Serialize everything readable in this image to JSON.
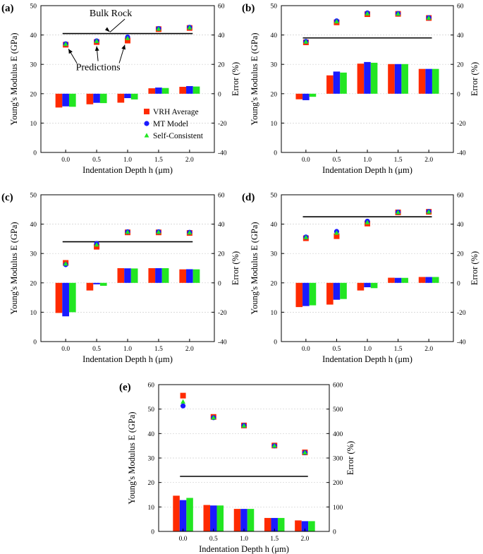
{
  "chart_data": [
    {
      "panel": "(a)",
      "type": "bar+scatter",
      "categories": [
        "0.0",
        "0.5",
        "1.0",
        "1.5",
        "2.0"
      ],
      "xlabel": "Indentation Depth h (μm)",
      "ylabel": "Young's Modulus E (GPa)",
      "ylabel_right": "Error (%)",
      "ylim": [
        0,
        50
      ],
      "yticks": [
        "0",
        "10",
        "20",
        "30",
        "40",
        "50"
      ],
      "ylim_right": [
        -40,
        60
      ],
      "yticks_right": [
        "-40",
        "-20",
        "0",
        "20",
        "40",
        "60"
      ],
      "bulk_rock": 40.5,
      "points": [
        {
          "name": "VRH Average",
          "values": [
            36.7,
            37.6,
            38.1,
            42.0,
            42.4
          ]
        },
        {
          "name": "MT Model",
          "values": [
            37.0,
            38.0,
            39.3,
            42.2,
            42.6
          ]
        },
        {
          "name": "Self-Consistent",
          "values": [
            36.9,
            37.9,
            38.9,
            42.1,
            42.5
          ]
        }
      ],
      "error_bars": [
        {
          "name": "VRH Average",
          "values": [
            -9.4,
            -7.2,
            -6.1,
            3.7,
            4.7
          ]
        },
        {
          "name": "MT Model",
          "values": [
            -8.6,
            -6.2,
            -3.0,
            4.2,
            5.2
          ]
        },
        {
          "name": "Self-Consistent",
          "values": [
            -8.9,
            -6.4,
            -3.9,
            3.9,
            4.9
          ]
        }
      ],
      "legend": [
        "VRH Average",
        "MT Model",
        "Self-Consistent"
      ],
      "annotations": [
        "Bulk Rock",
        "Predictions"
      ]
    },
    {
      "panel": "(b)",
      "type": "bar+scatter",
      "categories": [
        "0.0",
        "0.5",
        "1.0",
        "1.5",
        "2.0"
      ],
      "xlabel": "Indentation Depth h (μm)",
      "ylabel": "Young's Modulus E (GPa)",
      "ylabel_right": "Error (%)",
      "ylim": [
        0,
        50
      ],
      "yticks": [
        "0",
        "10",
        "20",
        "30",
        "40",
        "50"
      ],
      "ylim_right": [
        -40,
        60
      ],
      "yticks_right": [
        "-40",
        "-20",
        "0",
        "20",
        "40",
        "60"
      ],
      "bulk_rock": 39.0,
      "points": [
        {
          "name": "VRH Average",
          "values": [
            37.5,
            44.3,
            47.1,
            47.2,
            45.8
          ]
        },
        {
          "name": "MT Model",
          "values": [
            37.8,
            44.8,
            47.5,
            47.3,
            45.9
          ]
        },
        {
          "name": "Self-Consistent",
          "values": [
            37.7,
            44.6,
            47.3,
            47.2,
            45.8
          ]
        }
      ],
      "error_bars": [
        {
          "name": "VRH Average",
          "values": [
            -3.8,
            12.5,
            20.5,
            20.2,
            16.9
          ]
        },
        {
          "name": "MT Model",
          "values": [
            -4.4,
            15.1,
            21.6,
            20.2,
            16.9
          ]
        },
        {
          "name": "Self-Consistent",
          "values": [
            -2.1,
            14.4,
            21.1,
            20.2,
            16.9
          ]
        }
      ],
      "legend": []
    },
    {
      "panel": "(c)",
      "type": "bar+scatter",
      "categories": [
        "0.0",
        "0.5",
        "1.0",
        "1.5",
        "2.0"
      ],
      "xlabel": "Indentation Depth h (μm)",
      "ylabel": "Young's Modulus E (GPa)",
      "ylabel_right": "Error (%)",
      "ylim": [
        0,
        50
      ],
      "yticks": [
        "0",
        "10",
        "20",
        "30",
        "40",
        "50"
      ],
      "ylim_right": [
        -40,
        60
      ],
      "yticks_right": [
        "-40",
        "-20",
        "0",
        "20",
        "40",
        "60"
      ],
      "bulk_rock": 34.0,
      "points": [
        {
          "name": "VRH Average",
          "values": [
            26.8,
            32.3,
            37.2,
            37.2,
            37.0
          ]
        },
        {
          "name": "MT Model",
          "values": [
            26.2,
            33.4,
            37.4,
            37.4,
            37.2
          ]
        },
        {
          "name": "Self-Consistent",
          "values": [
            26.5,
            33.0,
            37.3,
            37.3,
            37.1
          ]
        }
      ],
      "error_bars": [
        {
          "name": "VRH Average",
          "values": [
            -20.5,
            -5.2,
            10.0,
            10.0,
            9.2
          ]
        },
        {
          "name": "MT Model",
          "values": [
            -22.8,
            -1.0,
            9.9,
            10.0,
            9.3
          ]
        },
        {
          "name": "Self-Consistent",
          "values": [
            -20.0,
            -2.0,
            9.8,
            10.0,
            9.2
          ]
        }
      ],
      "legend": []
    },
    {
      "panel": "(d)",
      "type": "bar+scatter",
      "categories": [
        "0.0",
        "0.5",
        "1.0",
        "1.5",
        "2.0"
      ],
      "xlabel": "Indentation Depth h (μm)",
      "ylabel": "Young's Modulus E (GPa)",
      "ylabel_right": "Error (%)",
      "ylim": [
        0,
        50
      ],
      "yticks": [
        "0",
        "10",
        "20",
        "30",
        "40",
        "50"
      ],
      "ylim_right": [
        -40,
        60
      ],
      "yticks_right": [
        "-40",
        "-20",
        "0",
        "20",
        "40",
        "60"
      ],
      "bulk_rock": 42.5,
      "points": [
        {
          "name": "VRH Average",
          "values": [
            35.2,
            35.9,
            40.2,
            44.0,
            44.2
          ]
        },
        {
          "name": "MT Model",
          "values": [
            35.6,
            37.5,
            41.0,
            44.1,
            44.3
          ]
        },
        {
          "name": "Self-Consistent",
          "values": [
            35.5,
            37.0,
            40.6,
            44.0,
            44.2
          ]
        }
      ],
      "error_bars": [
        {
          "name": "VRH Average",
          "values": [
            -16.5,
            -14.8,
            -5.2,
            3.5,
            4.0
          ]
        },
        {
          "name": "MT Model",
          "values": [
            -15.8,
            -11.5,
            -3.0,
            3.4,
            4.0
          ]
        },
        {
          "name": "Self-Consistent",
          "values": [
            -15.3,
            -11.0,
            -3.6,
            3.4,
            4.0
          ]
        }
      ],
      "legend": []
    },
    {
      "panel": "(e)",
      "type": "bar+scatter",
      "categories": [
        "0.0",
        "0.5",
        "1.0",
        "1.5",
        "2.0"
      ],
      "xlabel": "Indentation Depth h (μm)",
      "ylabel": "Young's Modulus E (GPa)",
      "ylabel_right": "Error (%)",
      "ylim": [
        0,
        60
      ],
      "yticks": [
        "0",
        "10",
        "20",
        "30",
        "40",
        "50",
        "60"
      ],
      "ylim_right": [
        0,
        600
      ],
      "yticks_right": [
        "0",
        "100",
        "200",
        "300",
        "400",
        "500",
        "600"
      ],
      "bulk_rock": 22.5,
      "points": [
        {
          "name": "VRH Average",
          "values": [
            55.5,
            46.8,
            43.3,
            35.1,
            32.3
          ]
        },
        {
          "name": "MT Model",
          "values": [
            51.3,
            46.5,
            43.3,
            35.0,
            32.2
          ]
        },
        {
          "name": "Self-Consistent",
          "values": [
            53.0,
            46.5,
            43.2,
            35.0,
            32.2
          ]
        }
      ],
      "error_bars": [
        {
          "name": "VRH Average",
          "values": [
            146,
            108,
            92,
            55,
            45
          ]
        },
        {
          "name": "MT Model",
          "values": [
            128,
            106,
            92,
            55,
            42
          ]
        },
        {
          "name": "Self-Consistent",
          "values": [
            137,
            106,
            92,
            55,
            42
          ]
        }
      ],
      "legend": []
    }
  ],
  "colors": {
    "VRH Average": "#ff2a00",
    "MT Model": "#1a1aff",
    "Self-Consistent": "#22e622",
    "axis": "#000000",
    "grid": "#cfcfcf"
  }
}
